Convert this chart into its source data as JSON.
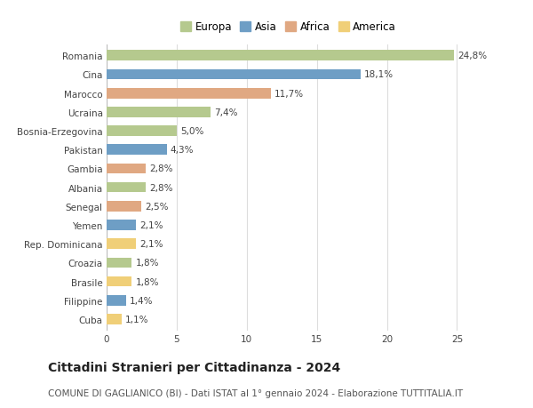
{
  "categories": [
    "Romania",
    "Cina",
    "Marocco",
    "Ucraina",
    "Bosnia-Erzegovina",
    "Pakistan",
    "Gambia",
    "Albania",
    "Senegal",
    "Yemen",
    "Rep. Dominicana",
    "Croazia",
    "Brasile",
    "Filippine",
    "Cuba"
  ],
  "values": [
    24.8,
    18.1,
    11.7,
    7.4,
    5.0,
    4.3,
    2.8,
    2.8,
    2.5,
    2.1,
    2.1,
    1.8,
    1.8,
    1.4,
    1.1
  ],
  "labels": [
    "24,8%",
    "18,1%",
    "11,7%",
    "7,4%",
    "5,0%",
    "4,3%",
    "2,8%",
    "2,8%",
    "2,5%",
    "2,1%",
    "2,1%",
    "1,8%",
    "1,8%",
    "1,4%",
    "1,1%"
  ],
  "continents": [
    "Europa",
    "Asia",
    "Africa",
    "Europa",
    "Europa",
    "Asia",
    "Africa",
    "Europa",
    "Africa",
    "Asia",
    "America",
    "Europa",
    "America",
    "Asia",
    "America"
  ],
  "continent_colors": {
    "Europa": "#b5c98e",
    "Asia": "#6e9ec5",
    "Africa": "#e0a882",
    "America": "#f0cf78"
  },
  "legend_order": [
    "Europa",
    "Asia",
    "Africa",
    "America"
  ],
  "title": "Cittadini Stranieri per Cittadinanza - 2024",
  "subtitle": "COMUNE DI GAGLIANICO (BI) - Dati ISTAT al 1° gennaio 2024 - Elaborazione TUTTITALIA.IT",
  "xlim": [
    0,
    27
  ],
  "xticks": [
    0,
    5,
    10,
    15,
    20,
    25
  ],
  "background_color": "#ffffff",
  "grid_color": "#dddddd",
  "bar_height": 0.55,
  "label_fontsize": 7.5,
  "ytick_fontsize": 7.5,
  "xtick_fontsize": 7.5,
  "title_fontsize": 10,
  "subtitle_fontsize": 7.5,
  "legend_fontsize": 8.5
}
